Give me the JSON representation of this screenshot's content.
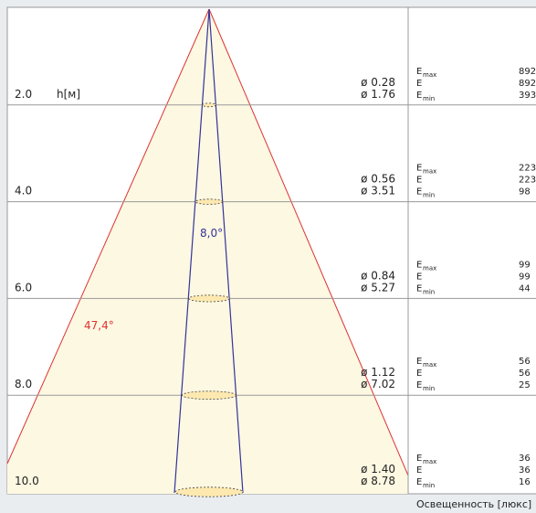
{
  "diagram": {
    "unit_label": "h[м]",
    "beam_angle": "47,4°",
    "inner_angle": "8,0°",
    "footer": "Освещенность  [люкс]",
    "e_symbol": "E",
    "max_sub": "max",
    "min_sub": "min",
    "rows": [
      {
        "h": "2.0",
        "d_inner": "ø 0.28",
        "d_outer": "ø 1.76",
        "emax": "892",
        "e": "892",
        "emin": "393"
      },
      {
        "h": "4.0",
        "d_inner": "ø 0.56",
        "d_outer": "ø 3.51",
        "emax": "223",
        "e": "223",
        "emin": "98"
      },
      {
        "h": "6.0",
        "d_inner": "ø 0.84",
        "d_outer": "ø 5.27",
        "emax": "99",
        "e": "99",
        "emin": "44"
      },
      {
        "h": "8.0",
        "d_inner": "ø 1.12",
        "d_outer": "ø 7.02",
        "emax": "56",
        "e": "56",
        "emin": "25"
      },
      {
        "h": "10.0",
        "d_inner": "ø 1.40",
        "d_outer": "ø 8.78",
        "emax": "36",
        "e": "36",
        "emin": "16"
      }
    ]
  }
}
